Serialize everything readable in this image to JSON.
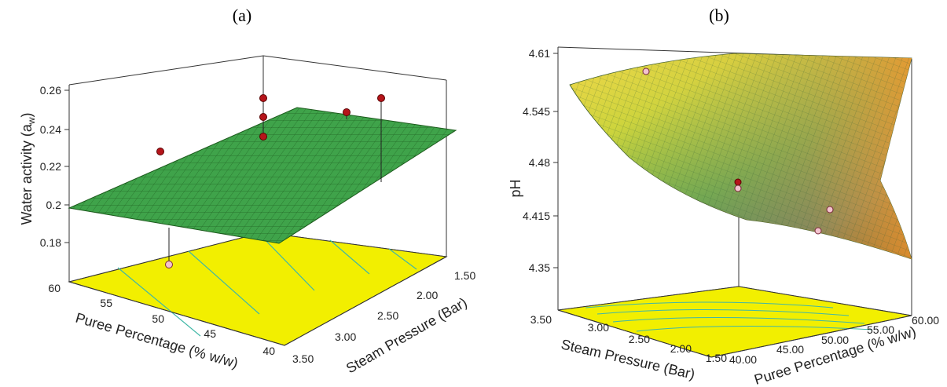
{
  "chart_data": [
    {
      "type": "surface3d",
      "panel_label": "(a)",
      "zlabel": "Water activity (a",
      "zlabel_sub": "w",
      "zlabel_end": ")",
      "xlabel": "Puree Percentage (% w/w)",
      "ylabel": "Steam Pressure (Bar)",
      "z_ticks": [
        "0.26",
        "0.24",
        "0.22",
        "0.2",
        "0.18"
      ],
      "x_ticks": [
        "60",
        "55",
        "50",
        "45",
        "40"
      ],
      "y_ticks": [
        "1.50",
        "2.00",
        "2.50",
        "3.00",
        "3.50"
      ],
      "zlim": [
        0.17,
        0.26
      ],
      "xlim": [
        40,
        60
      ],
      "ylim": [
        1.5,
        3.5
      ],
      "surface_corners": [
        {
          "puree": 60,
          "pressure": 1.5,
          "aw": 0.234
        },
        {
          "puree": 60,
          "pressure": 3.5,
          "aw": 0.197
        },
        {
          "puree": 40,
          "pressure": 3.5,
          "aw": 0.171
        },
        {
          "puree": 40,
          "pressure": 1.5,
          "aw": 0.235
        }
      ],
      "design_points": [
        {
          "puree": 60,
          "pressure": 3.5,
          "aw": 0.223
        },
        {
          "puree": 50,
          "pressure": 2.5,
          "aw": 0.251
        },
        {
          "puree": 50,
          "pressure": 2.5,
          "aw": 0.241
        },
        {
          "puree": 50,
          "pressure": 2.5,
          "aw": 0.229
        },
        {
          "puree": 55,
          "pressure": 1.5,
          "aw": 0.245
        },
        {
          "puree": 45,
          "pressure": 2.0,
          "aw": 0.253
        },
        {
          "puree": 55,
          "pressure": 3.0,
          "aw": 0.172
        }
      ],
      "colors": {
        "surface": "#3fa34a",
        "mesh": "#1c5a1c",
        "contour_plane": "#f2ef00",
        "point": "#b5141a"
      }
    },
    {
      "type": "surface3d",
      "panel_label": "(b)",
      "zlabel": "pH",
      "xlabel": "Steam Pressure (Bar)",
      "ylabel": "Puree Percentage (% w/w)",
      "z_ticks": [
        "4.61",
        "4.545",
        "4.48",
        "4.415",
        "4.35"
      ],
      "x_ticks": [
        "3.50",
        "3.00",
        "2.50",
        "2.00",
        "1.50"
      ],
      "y_ticks": [
        "40.00",
        "45.00",
        "50.00",
        "55.00",
        "60.00"
      ],
      "zlim": [
        4.35,
        4.61
      ],
      "xlim": [
        1.5,
        3.5
      ],
      "ylim": [
        40,
        60
      ],
      "design_points": [
        {
          "pressure": 2.5,
          "puree": 50,
          "ph": 4.6
        },
        {
          "pressure": 2.0,
          "puree": 45,
          "ph": 4.43
        },
        {
          "pressure": 2.0,
          "puree": 45,
          "ph": 4.42
        },
        {
          "pressure": 1.5,
          "puree": 55,
          "ph": 4.41
        },
        {
          "pressure": 1.5,
          "puree": 50,
          "ph": 4.39
        }
      ],
      "colors": {
        "surface_high": "#f5a030",
        "surface_mid": "#9cc93a",
        "surface_low": "#0a1a2a",
        "contour_plane": "#f2ef00",
        "point": "#b5141a"
      }
    }
  ]
}
